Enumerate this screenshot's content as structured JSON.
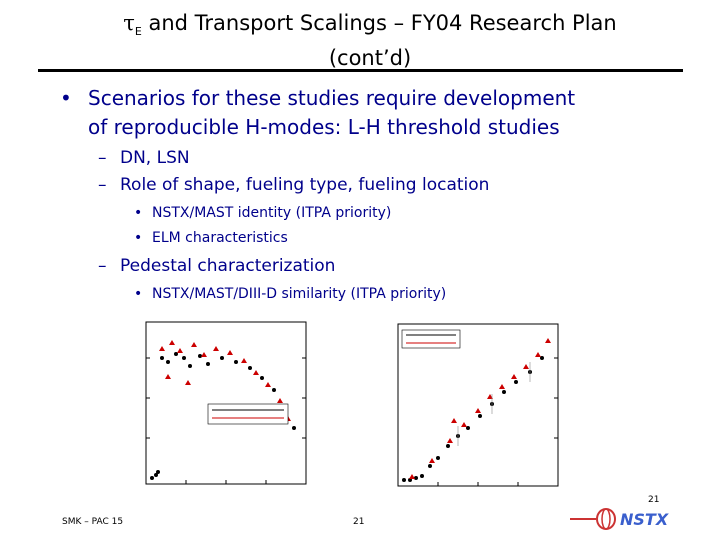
{
  "slide": {
    "title_tau": "τ",
    "title_sub": "E",
    "title_rest": " and Transport Scalings – FY04 Research Plan",
    "title_line2": "(cont’d)"
  },
  "bullets": {
    "main_marker": "•",
    "main_line1": "Scenarios for these studies require development",
    "main_line2": "of reproducible H-modes: L-H threshold studies",
    "dash": "–",
    "sub1": "DN, LSN",
    "sub2": "Role of shape, fueling type, fueling location",
    "dot": "•",
    "sub2a": "NSTX/MAST identity (ITPA priority)",
    "sub2b": "ELM characteristics",
    "sub3": "Pedestal characterization",
    "sub3a": "NSTX/MAST/DIII-D similarity (ITPA priority)"
  },
  "footer": {
    "left": "SMK – PAC 15",
    "page": "21",
    "corner_page": "21"
  },
  "logo": {
    "text": "NSTX",
    "color": "#3a5fcd"
  },
  "colors": {
    "text": "#00008b",
    "title": "#000000",
    "red_points": "#cc0000"
  }
}
